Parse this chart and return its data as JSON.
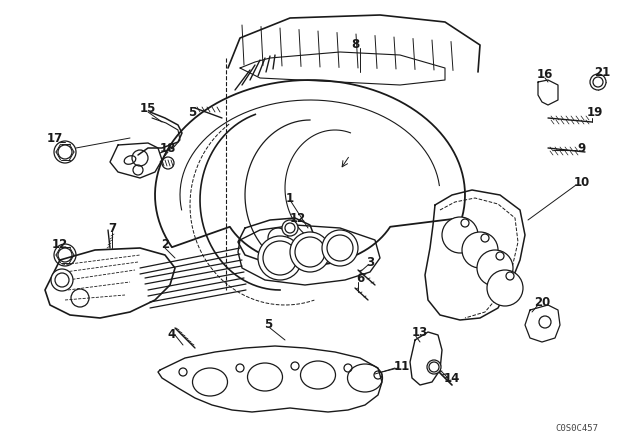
{
  "bg_color": "#ffffff",
  "line_color": "#1a1a1a",
  "fig_width": 6.4,
  "fig_height": 4.48,
  "dpi": 100,
  "watermark": "C0S0C457",
  "lw": 0.9
}
